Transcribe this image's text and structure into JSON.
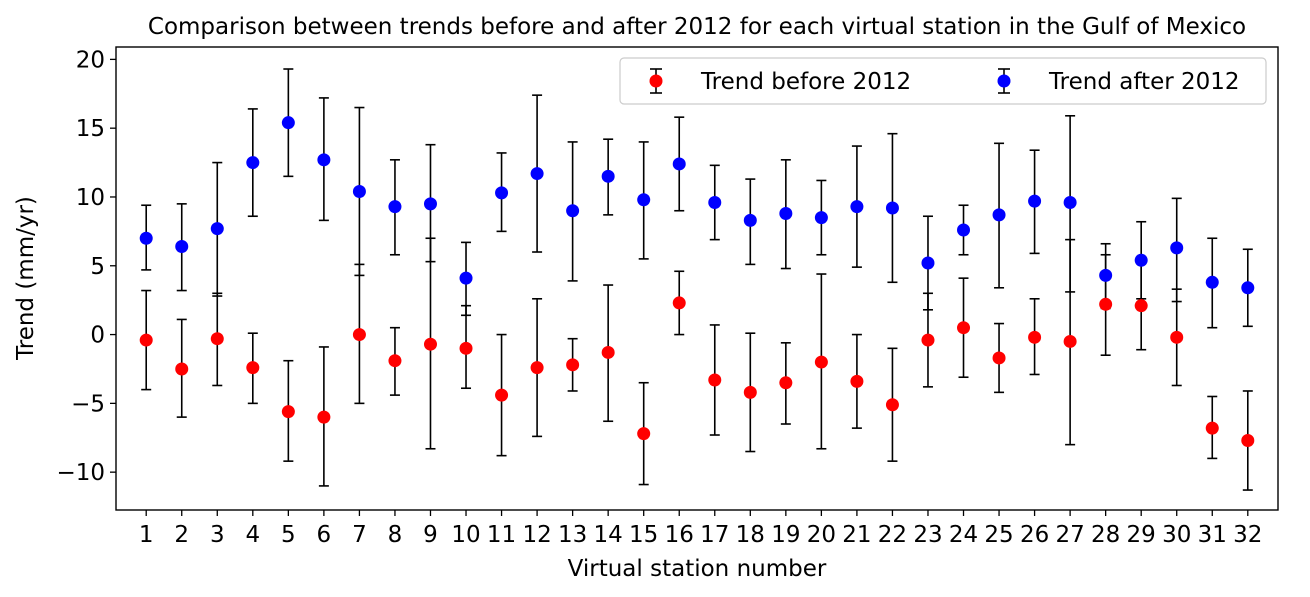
{
  "chart_data": {
    "type": "scatter",
    "title": "Comparison between trends before and after 2012 for each virtual station in the Gulf of Mexico",
    "xlabel": "Virtual station number",
    "ylabel": "Trend (mm/yr)",
    "x": [
      1,
      2,
      3,
      4,
      5,
      6,
      7,
      8,
      9,
      10,
      11,
      12,
      13,
      14,
      15,
      16,
      17,
      18,
      19,
      20,
      21,
      22,
      23,
      24,
      25,
      26,
      27,
      28,
      29,
      30,
      31,
      32
    ],
    "xlim": [
      0.15,
      32.85
    ],
    "ylim": [
      -12.75,
      20.9
    ],
    "yticks": [
      -10,
      -5,
      0,
      5,
      10,
      15,
      20
    ],
    "legend_position": "top-right",
    "series": [
      {
        "name": "Trend before 2012",
        "color": "#ff0000",
        "values": [
          -0.4,
          -2.5,
          -0.3,
          -2.4,
          -5.6,
          -6.0,
          0.0,
          -1.9,
          -0.7,
          -1.0,
          -4.4,
          -2.4,
          -2.2,
          -1.3,
          -7.2,
          2.3,
          -3.3,
          -4.2,
          -3.5,
          -2.0,
          -3.4,
          -5.1,
          -0.4,
          0.5,
          -1.7,
          -0.2,
          -0.5,
          2.2,
          2.1,
          -0.2,
          -6.8,
          -7.7
        ],
        "err_low": [
          -4.0,
          -6.0,
          -3.7,
          -5.0,
          -9.2,
          -11.0,
          -5.0,
          -4.4,
          -8.3,
          -3.9,
          -8.8,
          -7.4,
          -4.1,
          -6.3,
          -10.9,
          0.0,
          -7.3,
          -8.5,
          -6.5,
          -8.3,
          -6.8,
          -9.2,
          -3.8,
          -3.1,
          -4.2,
          -2.9,
          -8.0,
          -1.5,
          -1.1,
          -3.7,
          -9.0,
          -11.3
        ],
        "err_high": [
          3.2,
          1.1,
          3.0,
          0.1,
          -1.9,
          -0.9,
          5.1,
          0.5,
          7.0,
          2.1,
          0.0,
          2.6,
          -0.3,
          3.6,
          -3.5,
          4.6,
          0.7,
          0.1,
          -0.6,
          4.4,
          0.0,
          -1.0,
          3.0,
          4.1,
          0.8,
          2.6,
          6.9,
          5.8,
          5.2,
          3.3,
          -4.5,
          -4.1
        ]
      },
      {
        "name": "Trend after 2012",
        "color": "#0000ff",
        "values": [
          7.0,
          6.4,
          7.7,
          12.5,
          15.4,
          12.7,
          10.4,
          9.3,
          9.5,
          4.1,
          10.3,
          11.7,
          9.0,
          11.5,
          9.8,
          12.4,
          9.6,
          8.3,
          8.8,
          8.5,
          9.3,
          9.2,
          5.2,
          7.6,
          8.7,
          9.7,
          9.6,
          4.3,
          5.4,
          6.3,
          3.8,
          3.4
        ],
        "err_low": [
          4.7,
          3.2,
          2.8,
          8.6,
          11.5,
          8.3,
          4.3,
          5.8,
          5.3,
          1.4,
          7.5,
          6.0,
          3.9,
          8.7,
          5.5,
          9.0,
          6.9,
          5.1,
          4.8,
          5.8,
          4.9,
          3.8,
          1.8,
          5.8,
          3.4,
          5.9,
          3.1,
          1.9,
          2.6,
          2.4,
          0.5,
          0.6
        ],
        "err_high": [
          9.4,
          9.5,
          12.5,
          16.4,
          19.3,
          17.2,
          16.5,
          12.7,
          13.8,
          6.7,
          13.2,
          17.4,
          14.0,
          14.2,
          14.0,
          15.8,
          12.3,
          11.3,
          12.7,
          11.2,
          13.7,
          14.6,
          8.6,
          9.4,
          13.9,
          13.4,
          15.9,
          6.6,
          8.2,
          9.9,
          7.0,
          6.2
        ]
      }
    ]
  }
}
